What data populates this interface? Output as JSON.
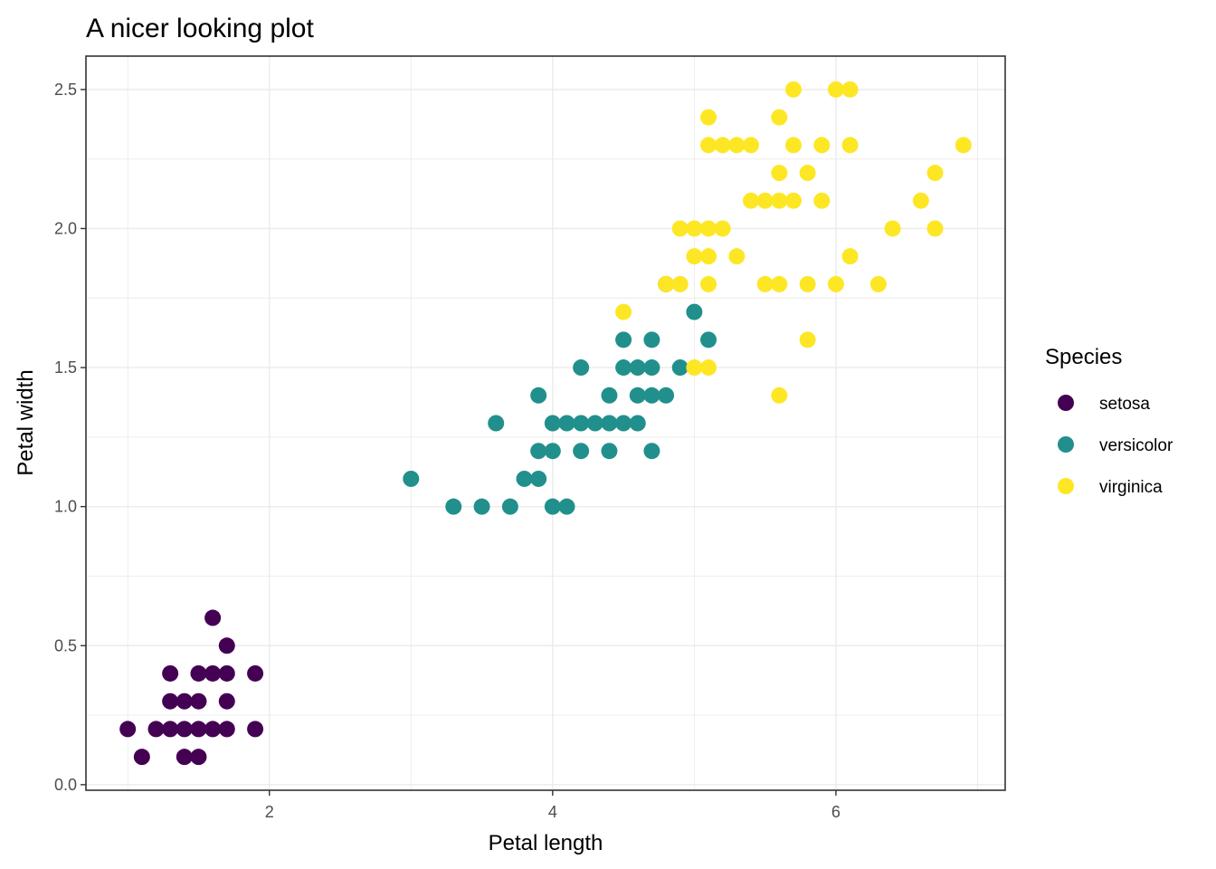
{
  "chart_data": {
    "type": "scatter",
    "title": "A nicer looking plot",
    "xlabel": "Petal length",
    "ylabel": "Petal width",
    "xlim": [
      0.705,
      7.195
    ],
    "ylim": [
      -0.02,
      2.62
    ],
    "x_ticks": [
      2,
      4,
      6
    ],
    "x_tick_labels": [
      "2",
      "4",
      "6"
    ],
    "y_ticks": [
      0.0,
      0.5,
      1.0,
      1.5,
      2.0,
      2.5
    ],
    "y_tick_labels": [
      "0.0",
      "0.5",
      "1.0",
      "1.5",
      "2.0",
      "2.5"
    ],
    "grid": true,
    "legend": {
      "title": "Species",
      "position": "right"
    },
    "series": [
      {
        "name": "setosa",
        "color": "#440154",
        "points": [
          [
            1.0,
            0.2
          ],
          [
            1.1,
            0.1
          ],
          [
            1.2,
            0.2
          ],
          [
            1.3,
            0.2
          ],
          [
            1.3,
            0.3
          ],
          [
            1.3,
            0.4
          ],
          [
            1.4,
            0.1
          ],
          [
            1.4,
            0.2
          ],
          [
            1.4,
            0.3
          ],
          [
            1.5,
            0.1
          ],
          [
            1.5,
            0.2
          ],
          [
            1.5,
            0.3
          ],
          [
            1.5,
            0.4
          ],
          [
            1.6,
            0.2
          ],
          [
            1.6,
            0.4
          ],
          [
            1.6,
            0.6
          ],
          [
            1.7,
            0.2
          ],
          [
            1.7,
            0.3
          ],
          [
            1.7,
            0.4
          ],
          [
            1.7,
            0.5
          ],
          [
            1.9,
            0.2
          ],
          [
            1.9,
            0.4
          ]
        ]
      },
      {
        "name": "versicolor",
        "color": "#21908C",
        "points": [
          [
            3.0,
            1.1
          ],
          [
            3.3,
            1.0
          ],
          [
            3.5,
            1.0
          ],
          [
            3.6,
            1.3
          ],
          [
            3.7,
            1.0
          ],
          [
            3.8,
            1.1
          ],
          [
            3.9,
            1.1
          ],
          [
            3.9,
            1.2
          ],
          [
            3.9,
            1.4
          ],
          [
            4.0,
            1.0
          ],
          [
            4.0,
            1.2
          ],
          [
            4.0,
            1.3
          ],
          [
            4.1,
            1.0
          ],
          [
            4.1,
            1.3
          ],
          [
            4.2,
            1.2
          ],
          [
            4.2,
            1.3
          ],
          [
            4.2,
            1.5
          ],
          [
            4.3,
            1.3
          ],
          [
            4.4,
            1.2
          ],
          [
            4.4,
            1.3
          ],
          [
            4.4,
            1.4
          ],
          [
            4.5,
            1.3
          ],
          [
            4.5,
            1.5
          ],
          [
            4.5,
            1.6
          ],
          [
            4.6,
            1.3
          ],
          [
            4.6,
            1.4
          ],
          [
            4.6,
            1.5
          ],
          [
            4.7,
            1.2
          ],
          [
            4.7,
            1.4
          ],
          [
            4.7,
            1.5
          ],
          [
            4.7,
            1.6
          ],
          [
            4.8,
            1.4
          ],
          [
            4.8,
            1.8
          ],
          [
            4.9,
            1.5
          ],
          [
            5.0,
            1.7
          ],
          [
            5.1,
            1.6
          ]
        ]
      },
      {
        "name": "virginica",
        "color": "#FDE725",
        "points": [
          [
            4.5,
            1.7
          ],
          [
            4.8,
            1.8
          ],
          [
            4.9,
            1.8
          ],
          [
            4.9,
            2.0
          ],
          [
            5.0,
            1.5
          ],
          [
            5.0,
            1.9
          ],
          [
            5.0,
            2.0
          ],
          [
            5.1,
            1.5
          ],
          [
            5.1,
            1.8
          ],
          [
            5.1,
            1.9
          ],
          [
            5.1,
            2.0
          ],
          [
            5.1,
            2.3
          ],
          [
            5.1,
            2.4
          ],
          [
            5.2,
            2.0
          ],
          [
            5.2,
            2.3
          ],
          [
            5.3,
            1.9
          ],
          [
            5.3,
            2.3
          ],
          [
            5.4,
            2.1
          ],
          [
            5.4,
            2.3
          ],
          [
            5.5,
            1.8
          ],
          [
            5.5,
            2.1
          ],
          [
            5.6,
            1.4
          ],
          [
            5.6,
            1.8
          ],
          [
            5.6,
            2.1
          ],
          [
            5.6,
            2.2
          ],
          [
            5.6,
            2.4
          ],
          [
            5.7,
            2.1
          ],
          [
            5.7,
            2.3
          ],
          [
            5.7,
            2.5
          ],
          [
            5.8,
            1.6
          ],
          [
            5.8,
            1.8
          ],
          [
            5.8,
            2.2
          ],
          [
            5.9,
            2.1
          ],
          [
            5.9,
            2.3
          ],
          [
            6.0,
            1.8
          ],
          [
            6.0,
            2.5
          ],
          [
            6.1,
            1.9
          ],
          [
            6.1,
            2.3
          ],
          [
            6.1,
            2.5
          ],
          [
            6.3,
            1.8
          ],
          [
            6.4,
            2.0
          ],
          [
            6.6,
            2.1
          ],
          [
            6.7,
            2.0
          ],
          [
            6.7,
            2.2
          ],
          [
            6.9,
            2.3
          ]
        ]
      }
    ]
  }
}
